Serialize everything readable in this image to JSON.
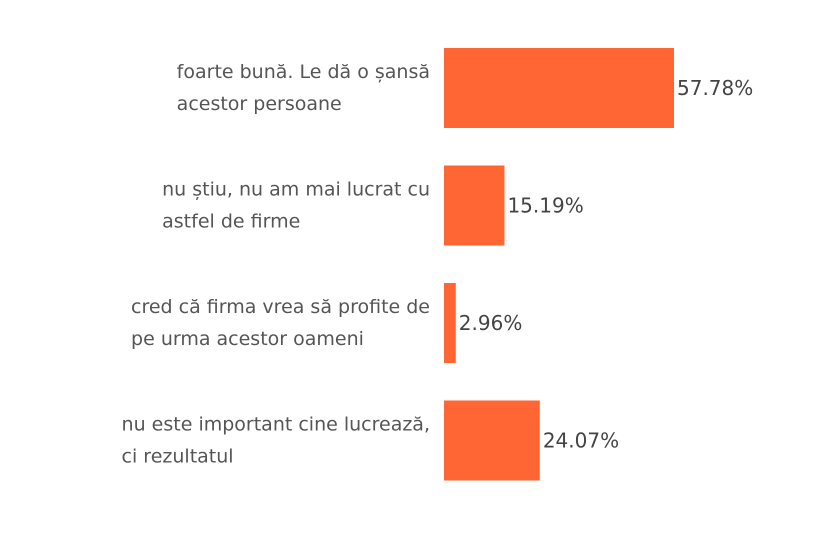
{
  "chart_data": {
    "type": "bar",
    "orientation": "horizontal",
    "categories": [
      [
        "foarte bună. Le dă o șansă",
        "acestor persoane"
      ],
      [
        "nu știu, nu am mai lucrat cu",
        "astfel de firme"
      ],
      [
        "cred că firma vrea să profite de",
        "pe urma acestor oameni"
      ],
      [
        "nu este important cine lucrează,",
        "ci rezultatul"
      ]
    ],
    "values": [
      57.78,
      15.19,
      2.96,
      24.07
    ],
    "value_labels": [
      "57.78%",
      "15.19%",
      "2.96%",
      "24.07%"
    ],
    "bar_color": "#FF6633",
    "xlim": [
      0,
      100
    ],
    "grid": false,
    "legend": "none"
  }
}
